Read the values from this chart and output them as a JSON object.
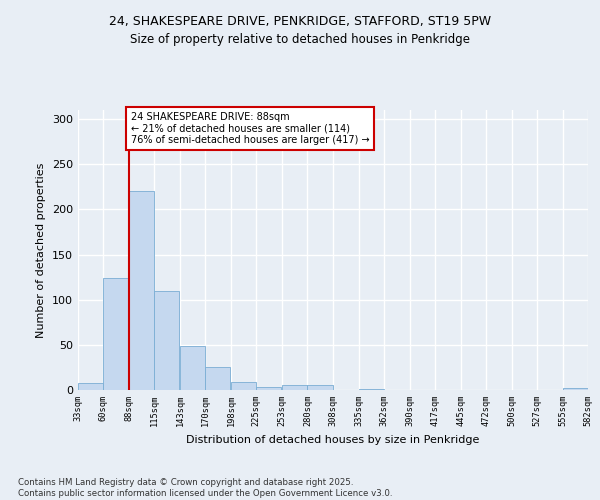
{
  "title_line1": "24, SHAKESPEARE DRIVE, PENKRIDGE, STAFFORD, ST19 5PW",
  "title_line2": "Size of property relative to detached houses in Penkridge",
  "xlabel": "Distribution of detached houses by size in Penkridge",
  "ylabel": "Number of detached properties",
  "bar_color": "#c5d8ef",
  "bar_edge_color": "#7aadd4",
  "marker_color": "#cc0000",
  "marker_value": 88,
  "annotation_text": "24 SHAKESPEARE DRIVE: 88sqm\n← 21% of detached houses are smaller (114)\n76% of semi-detached houses are larger (417) →",
  "annotation_box_color": "#ffffff",
  "annotation_box_edge_color": "#cc0000",
  "footer_line1": "Contains HM Land Registry data © Crown copyright and database right 2025.",
  "footer_line2": "Contains public sector information licensed under the Open Government Licence v3.0.",
  "bin_edges": [
    33,
    60,
    88,
    115,
    143,
    170,
    198,
    225,
    253,
    280,
    308,
    335,
    362,
    390,
    417,
    445,
    472,
    500,
    527,
    555,
    582
  ],
  "bin_labels": [
    "33sqm",
    "60sqm",
    "88sqm",
    "115sqm",
    "143sqm",
    "170sqm",
    "198sqm",
    "225sqm",
    "253sqm",
    "280sqm",
    "308sqm",
    "335sqm",
    "362sqm",
    "390sqm",
    "417sqm",
    "445sqm",
    "472sqm",
    "500sqm",
    "527sqm",
    "555sqm",
    "582sqm"
  ],
  "counts": [
    8,
    124,
    220,
    110,
    49,
    25,
    9,
    3,
    5,
    5,
    0,
    1,
    0,
    0,
    0,
    0,
    0,
    0,
    0,
    2
  ],
  "ylim": [
    0,
    310
  ],
  "yticks": [
    0,
    50,
    100,
    150,
    200,
    250,
    300
  ],
  "background_color": "#e8eef5",
  "plot_bg_color": "#e8eef5",
  "grid_color": "#ffffff"
}
